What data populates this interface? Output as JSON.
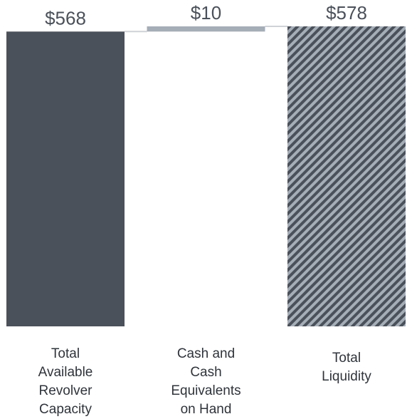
{
  "chart_data": {
    "type": "waterfall",
    "categories": [
      "Total Available Revolver Capacity",
      "Cash and Cash Equivalents on Hand",
      "Total Liquidity"
    ],
    "values": [
      568,
      10,
      578
    ],
    "value_labels": [
      "$568",
      "$10",
      "$578"
    ],
    "colors": [
      "#4b515a",
      "#a5adb7",
      "#a5adb7"
    ],
    "total_hatch_color": "#4b515a"
  }
}
